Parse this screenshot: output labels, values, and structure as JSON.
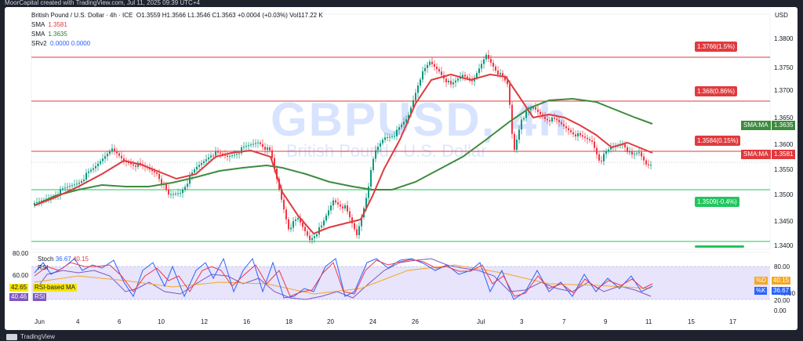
{
  "header": {
    "created_text": "MoorCapital created with TradingView.com, Jul 11, 2025 09:39 UTC+4"
  },
  "chart": {
    "title": "British Pound / U.S. Dollar · 4h · ICE",
    "ohlc": "O1.3559  H1.3566  L1.3546  C1.3563  +0.0004 (+0.03%)  Vol117.22 K",
    "currency": "USD",
    "watermark_symbol": "GBPUSD, 4h",
    "watermark_name": "British Pound / U.S. Dollar",
    "sma1_label": "SMA",
    "sma1_value": "1.3581",
    "sma2_label": "SMA",
    "sma2_value": "1.3635",
    "srv_label": "SRv2",
    "srv_values": "0.0000  0.0000",
    "colors": {
      "bull": "#089981",
      "bear": "#f23645",
      "sma_fast": "#e03a3e",
      "sma_slow": "#3d8b3d",
      "resistance": "#e03a3e",
      "support": "#22c55e"
    }
  },
  "levels": {
    "r1": "1.3766(1.5%)",
    "r2": "1.368(0.86%)",
    "r3": "1.3584(0.15%)",
    "s1": "1.3509(-0.4%)"
  },
  "price_axis": {
    "ticks": [
      "1.3800",
      "1.3750",
      "1.3700",
      "1.3650",
      "1.3600",
      "1.3550",
      "1.3500",
      "1.3450",
      "1.3400"
    ],
    "sma_slow_tag": "SMA:MA",
    "sma_slow_value": "1.3635",
    "sma_fast_tag": "SMA:MA",
    "sma_fast_value": "1.3581"
  },
  "time_axis": [
    "Jun",
    "4",
    "6",
    "10",
    "12",
    "16",
    "18",
    "20",
    "24",
    "26",
    "Jul",
    "3",
    "7",
    "9",
    "11",
    "15",
    "17"
  ],
  "oscillator": {
    "stoch_label": "Stoch",
    "stoch_k": "36.67",
    "stoch_d": "40.15",
    "rsi_label": "RSI",
    "rsi_value": "40.46",
    "rsi_ma_value": "42.65",
    "rsi_ma_label": "RSI-based MA",
    "rsi_value_label": "RSI",
    "axis_ticks_left": [
      "80.00",
      "60.00"
    ],
    "axis_ticks_right": [
      "80.00",
      "40.00",
      "20.00",
      "0.00"
    ],
    "tag_d": "%D",
    "tag_k": "%K"
  },
  "footer": {
    "brand": "TradingView"
  }
}
